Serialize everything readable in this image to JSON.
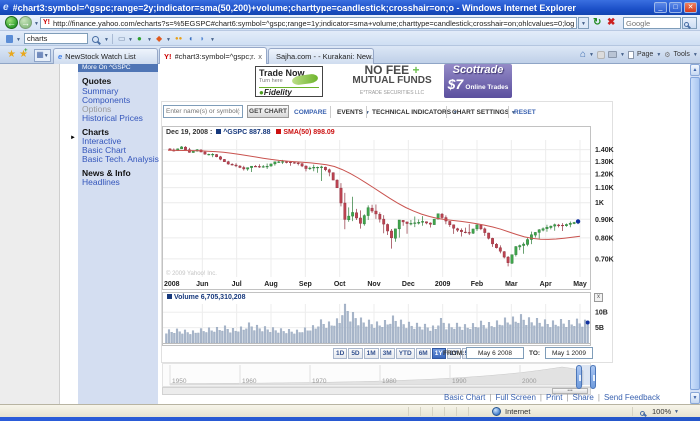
{
  "window": {
    "title": "#chart3:symbol=^gspc;range=2y;indicator=sma(50,200)+volume;charttype=candlestick;crosshair=on;o - Windows Internet Explorer"
  },
  "nav": {
    "url": "http://finance.yahoo.com/echarts?s=%5EGSPC#chart6:symbol=^gspc;range=1y;indicator=sma+volume;charttype=candlestick;crosshair=on;ohlcvalues=0;logscale=on;source",
    "favicon_text": "Y!",
    "search_placeholder": "Google"
  },
  "toolbar": {
    "search_value": "charts"
  },
  "tabs": [
    {
      "label": "NewStock Watch List"
    },
    {
      "label": "#chart3:symbol=^gspc;r...",
      "close_glyph": "x",
      "active": true
    },
    {
      "label": "Sajha.com - - Kurakani: New..."
    }
  ],
  "command_bar": {
    "page_label": "Page",
    "tools_label": "Tools",
    "overflow_glyph": "»"
  },
  "sidebar": {
    "header_label": "More On ^GSPC",
    "sections": [
      {
        "title": "Quotes",
        "items": [
          {
            "label": "Summary"
          },
          {
            "label": "Components"
          },
          {
            "label": "Options",
            "disabled": true
          },
          {
            "label": "Historical Prices"
          }
        ]
      },
      {
        "title": "Charts",
        "items": [
          {
            "label": "Interactive",
            "selected": true
          },
          {
            "label": "Basic Chart"
          },
          {
            "label": "Basic Tech. Analysis"
          }
        ]
      },
      {
        "title": "News & Info",
        "items": [
          {
            "label": "Headlines"
          }
        ]
      }
    ]
  },
  "ads": {
    "fidelity": {
      "line1": "Trade Now",
      "line2": "Turn here",
      "brand": "Fidelity"
    },
    "nofee": {
      "line1": "NO FEE",
      "plus": "+",
      "line2": "MUTUAL FUNDS",
      "line3": "E*TRADE SECURITIES LLC"
    },
    "scottrade": {
      "brand": "Scottrade",
      "price": "$7",
      "caption": "Online Trades"
    }
  },
  "chart_toolbar": {
    "symbol_placeholder": "Enter name(s) or symbol(s)",
    "get_chart_label": "GET CHART",
    "compare_label": "COMPARE",
    "events_label": "EVENTS",
    "technical_indicators_label": "TECHNICAL INDICATORS",
    "chart_settings_label": "CHART SETTINGS",
    "reset_label": "RESET"
  },
  "chart_data": {
    "type": "candlestick",
    "symbol": "^GSPC",
    "log_scale": true,
    "legend": {
      "date_label": "Dec 19, 2008 :",
      "price_label": "^GSPC 887.88",
      "sma_label": "SMA(50) 898.09"
    },
    "x_labels": [
      "2008",
      "Jun",
      "Jul",
      "Aug",
      "Sep",
      "Oct",
      "Nov",
      "Dec",
      "2009",
      "Feb",
      "Mar",
      "Apr",
      "May"
    ],
    "price_ticks": [
      {
        "label": "1.40K",
        "value": 1400
      },
      {
        "label": "1.30K",
        "value": 1300
      },
      {
        "label": "1.20K",
        "value": 1200
      },
      {
        "label": "1.10K",
        "value": 1100
      },
      {
        "label": "1K",
        "value": 1000
      },
      {
        "label": "0.90K",
        "value": 900
      },
      {
        "label": "0.80K",
        "value": 800
      },
      {
        "label": "0.70K",
        "value": 700
      }
    ],
    "ohlc_weekly": [
      [
        1407,
        1422,
        1384,
        1388
      ],
      [
        1390,
        1432,
        1388,
        1425
      ],
      [
        1423,
        1440,
        1373,
        1376
      ],
      [
        1375,
        1406,
        1370,
        1400
      ],
      [
        1398,
        1408,
        1355,
        1361
      ],
      [
        1360,
        1370,
        1332,
        1360
      ],
      [
        1358,
        1366,
        1308,
        1318
      ],
      [
        1316,
        1324,
        1272,
        1278
      ],
      [
        1277,
        1292,
        1252,
        1263
      ],
      [
        1262,
        1276,
        1225,
        1239
      ],
      [
        1238,
        1262,
        1200,
        1261
      ],
      [
        1260,
        1278,
        1246,
        1258
      ],
      [
        1256,
        1284,
        1234,
        1260
      ],
      [
        1262,
        1298,
        1247,
        1296
      ],
      [
        1294,
        1313,
        1274,
        1298
      ],
      [
        1296,
        1300,
        1261,
        1292
      ],
      [
        1290,
        1302,
        1265,
        1283
      ],
      [
        1282,
        1288,
        1217,
        1242
      ],
      [
        1240,
        1274,
        1212,
        1252
      ],
      [
        1250,
        1265,
        1133,
        1255
      ],
      [
        1253,
        1262,
        1179,
        1213
      ],
      [
        1210,
        1215,
        1098,
        1099
      ],
      [
        1097,
        1167,
        839,
        899
      ],
      [
        897,
        1044,
        865,
        940
      ],
      [
        938,
        985,
        845,
        877
      ],
      [
        874,
        984,
        846,
        969
      ],
      [
        966,
        1008,
        899,
        931
      ],
      [
        929,
        953,
        818,
        873
      ],
      [
        871,
        882,
        741,
        800
      ],
      [
        798,
        896,
        747,
        896
      ],
      [
        894,
        896,
        815,
        876
      ],
      [
        874,
        918,
        851,
        880
      ],
      [
        878,
        920,
        857,
        888
      ],
      [
        886,
        890,
        852,
        872
      ],
      [
        870,
        934,
        868,
        932
      ],
      [
        930,
        943,
        870,
        890
      ],
      [
        888,
        890,
        817,
        850
      ],
      [
        848,
        858,
        804,
        832
      ],
      [
        830,
        877,
        813,
        826
      ],
      [
        824,
        870,
        812,
        869
      ],
      [
        867,
        875,
        808,
        827
      ],
      [
        825,
        828,
        754,
        770
      ],
      [
        768,
        780,
        724,
        735
      ],
      [
        733,
        738,
        666,
        683
      ],
      [
        681,
        759,
        672,
        757
      ],
      [
        755,
        778,
        712,
        769
      ],
      [
        767,
        833,
        742,
        816
      ],
      [
        814,
        846,
        779,
        842
      ],
      [
        840,
        870,
        822,
        856
      ],
      [
        854,
        876,
        826,
        870
      ],
      [
        868,
        880,
        832,
        866
      ],
      [
        864,
        888,
        847,
        878
      ],
      [
        876,
        895,
        866,
        888
      ]
    ],
    "sma50_weekly": [
      1395,
      1394,
      1393,
      1392,
      1390,
      1387,
      1383,
      1377,
      1369,
      1359,
      1348,
      1337,
      1326,
      1316,
      1308,
      1302,
      1297,
      1292,
      1287,
      1281,
      1272,
      1258,
      1234,
      1204,
      1170,
      1134,
      1098,
      1062,
      1028,
      997,
      970,
      948,
      930,
      916,
      905,
      898,
      893,
      888,
      882,
      875,
      867,
      857,
      845,
      831,
      817,
      805,
      797,
      793,
      792,
      794,
      798,
      803,
      808
    ],
    "volume_weekly_billions": [
      3.9,
      4.1,
      3.8,
      3.6,
      4.2,
      4.4,
      4.6,
      5.0,
      4.3,
      4.7,
      5.9,
      5.2,
      4.8,
      4.5,
      4.2,
      4.0,
      3.8,
      4.4,
      5.1,
      6.8,
      6.2,
      7.1,
      11.5,
      8.9,
      7.3,
      6.7,
      6.2,
      6.6,
      7.9,
      6.7,
      6.1,
      5.8,
      5.5,
      5.0,
      7.2,
      5.6,
      5.8,
      5.4,
      5.7,
      6.4,
      6.0,
      6.5,
      7.3,
      7.6,
      8.3,
      7.4,
      7.2,
      6.8,
      6.5,
      6.9,
      6.6,
      7.0,
      6.7
    ],
    "volume_ticks": [
      {
        "label": "10B",
        "value": 10
      },
      {
        "label": "5B",
        "value": 5
      }
    ],
    "volume_legend_label": "Volume 6,705,310,208",
    "watermark": "© 2009 Yahoo! Inc.",
    "colors": {
      "up": "#3fa54b",
      "up_stroke": "#2a7a36",
      "down": "#bc4351",
      "down_stroke": "#8f2f3c",
      "sma": "#c9534f",
      "volume": "#a8b6ca",
      "volume_stroke": "#8ea0b8",
      "marker": "#0f2f9e",
      "legend_price": "#16387c",
      "legend_sma": "#cc1111"
    }
  },
  "range_selector": {
    "buttons": [
      "1D",
      "5D",
      "1M",
      "3M",
      "YTD",
      "6M",
      "1Y",
      "2Y",
      "5Y",
      "Max"
    ],
    "active_index": 6,
    "from_label": "FROM:",
    "from_value": "May 6 2008",
    "to_label": "TO:",
    "to_value": "May 1 2009"
  },
  "timeline": {
    "years": [
      "1950",
      "1960",
      "1970",
      "1980",
      "1990",
      "2000"
    ]
  },
  "volume_close_glyph": "x",
  "footer_links": [
    "Basic Chart",
    "Full Screen",
    "Print",
    "Share",
    "Send Feedback"
  ],
  "status_bar": {
    "zone_label": "Internet",
    "zoom_label": "100%"
  }
}
